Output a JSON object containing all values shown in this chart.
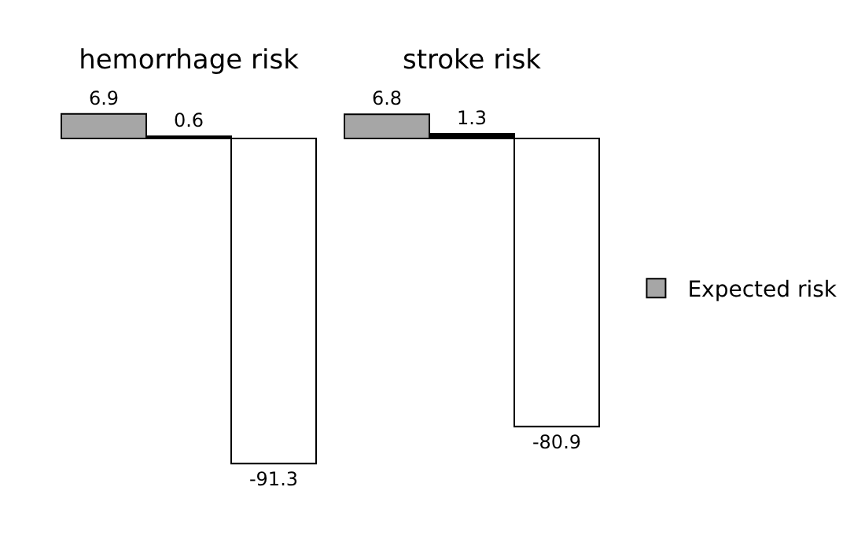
{
  "chart_data": {
    "type": "bar",
    "categories": [
      "hemorrhage risk",
      "stroke risk"
    ],
    "series": [
      {
        "name": "Expected risk",
        "color": "#a6a6a6",
        "values": [
          6.9,
          6.8
        ]
      },
      {
        "color": "#000000",
        "values": [
          0.6,
          1.3
        ]
      },
      {
        "color": "#ffffff",
        "values": [
          -91.3,
          -80.9
        ]
      }
    ],
    "data_labels": true,
    "legend": "right"
  }
}
